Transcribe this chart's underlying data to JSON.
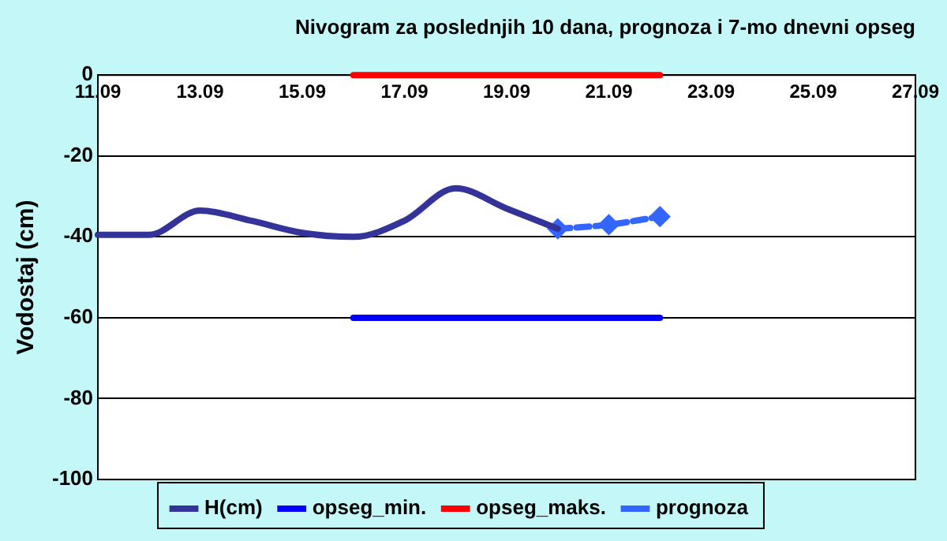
{
  "chart_data": {
    "type": "line",
    "title": "Nivogram za poslednjih 10 dana, prognoza i 7-mo dnevni opseg",
    "ylabel": "Vodostaj (cm)",
    "xlim": [
      "--09-11",
      "--09-27"
    ],
    "xticks": [
      {
        "value": "--09-11",
        "label": "11.09"
      },
      {
        "value": "--09-13",
        "label": "13.09"
      },
      {
        "value": "--09-15",
        "label": "15.09"
      },
      {
        "value": "--09-17",
        "label": "17.09"
      },
      {
        "value": "--09-19",
        "label": "19.09"
      },
      {
        "value": "--09-21",
        "label": "21.09"
      },
      {
        "value": "--09-23",
        "label": "23.09"
      },
      {
        "value": "--09-25",
        "label": "25.09"
      },
      {
        "value": "--09-27",
        "label": "27.09"
      }
    ],
    "ylim": [
      -100,
      0
    ],
    "yticks": [
      -100,
      -80,
      -60,
      -40,
      -20,
      0
    ],
    "grid": "y",
    "legend": "bottom",
    "series": [
      {
        "name": "H(cm)",
        "color": "#333399",
        "marker": "none",
        "line_style": "solid",
        "x": [
          "--09-11",
          "--09-12",
          "--09-13",
          "--09-14",
          "--09-15",
          "--09-16",
          "--09-17",
          "--09-18",
          "--09-19",
          "--09-20"
        ],
        "values": [
          -39.5,
          -39.5,
          -33.5,
          -36,
          -39,
          -40,
          -36,
          -28,
          -33,
          -38
        ]
      },
      {
        "name": "opseg_min.",
        "color": "#0000ff",
        "marker": "none",
        "line_style": "solid",
        "x": [
          "--09-16",
          "--09-22"
        ],
        "values": [
          -60,
          -60
        ]
      },
      {
        "name": "opseg_maks.",
        "color": "#ff0000",
        "marker": "none",
        "line_style": "solid",
        "x": [
          "--09-16",
          "--09-22"
        ],
        "values": [
          0,
          0
        ]
      },
      {
        "name": "prognoza",
        "color": "#3366ff",
        "marker": "diamond",
        "line_style": "dashed",
        "x": [
          "--09-20",
          "--09-21",
          "--09-22"
        ],
        "values": [
          -38,
          -37,
          -35
        ]
      }
    ]
  }
}
